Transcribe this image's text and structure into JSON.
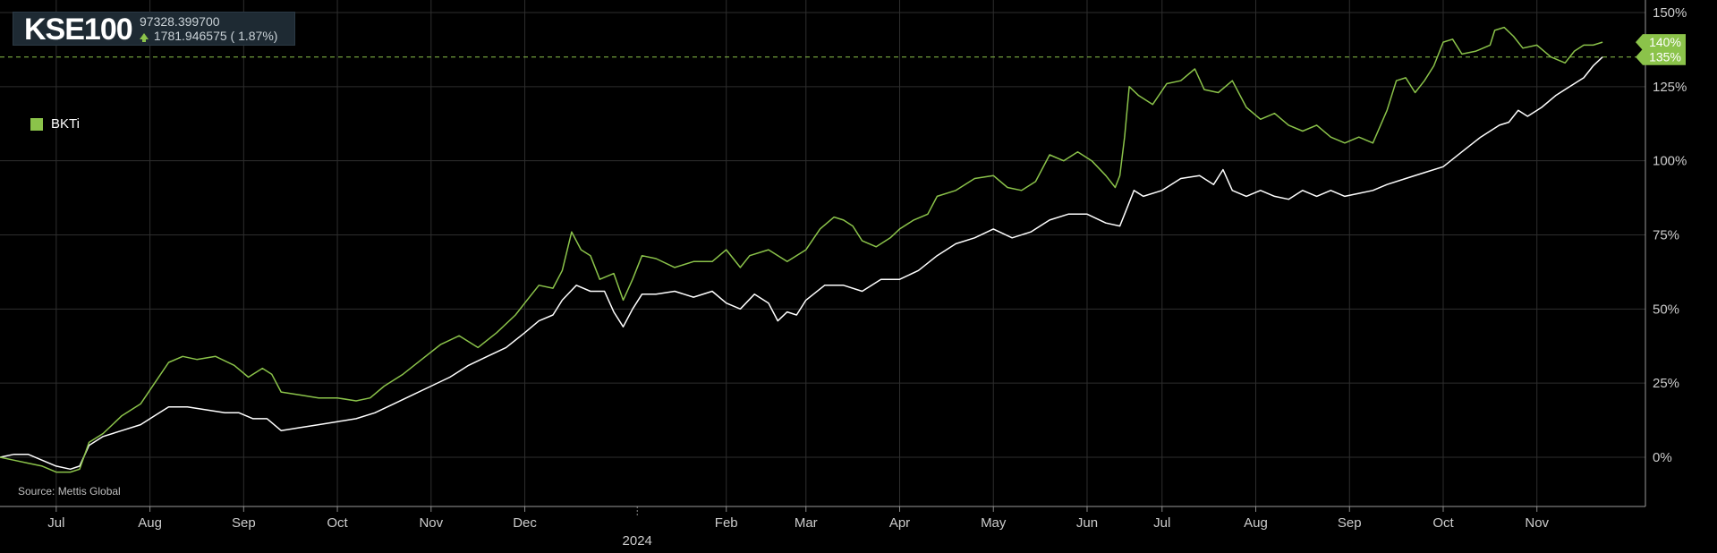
{
  "header": {
    "ticker": "KSE100",
    "price": "97328.399700",
    "change": "1781.946575 ( 1.87%)"
  },
  "legend": {
    "label": "BKTi",
    "color": "#8bc34a"
  },
  "source": "Source: Mettis Global",
  "colors": {
    "background": "#000000",
    "grid": "#2e2e2e",
    "series_bkti": "#8bc34a",
    "series_kse100": "#ffffff",
    "axis_text": "#cccccc"
  },
  "chart_data": {
    "type": "line",
    "title": "",
    "xlabel": "",
    "ylabel": "",
    "ylim": [
      -17,
      150
    ],
    "grid": true,
    "legend_position": "top-left",
    "y_ticks": [
      "0%",
      "25%",
      "50%",
      "75%",
      "100%",
      "125%",
      "150%"
    ],
    "y_tick_values": [
      0,
      25,
      50,
      75,
      100,
      125,
      150
    ],
    "x_ticks": [
      {
        "label": "Jul",
        "t": 0.6
      },
      {
        "label": "Aug",
        "t": 1.6
      },
      {
        "label": "Sep",
        "t": 2.6
      },
      {
        "label": "Oct",
        "t": 3.6
      },
      {
        "label": "Nov",
        "t": 4.6
      },
      {
        "label": "Dec",
        "t": 5.6
      },
      {
        "label": "Feb",
        "t": 7.75
      },
      {
        "label": "Mar",
        "t": 8.6
      },
      {
        "label": "Apr",
        "t": 9.6
      },
      {
        "label": "May",
        "t": 10.6
      },
      {
        "label": "Jun",
        "t": 11.6
      },
      {
        "label": "Jul",
        "t": 12.4
      },
      {
        "label": "Aug",
        "t": 13.4
      },
      {
        "label": "Sep",
        "t": 14.4
      },
      {
        "label": "Oct",
        "t": 15.4
      },
      {
        "label": "Nov",
        "t": 16.4
      }
    ],
    "year_marker": {
      "label": "2024",
      "t": 6.8
    },
    "t_max": 17.3,
    "end_labels": [
      {
        "text": "140%",
        "value": 140,
        "color": "#8bc34a"
      },
      {
        "text": "135%",
        "value": 135,
        "color": "#8bc34a"
      }
    ],
    "reference_line": {
      "value": 135,
      "style": "dashed",
      "color": "#8bc34a"
    },
    "series": [
      {
        "name": "BKTi",
        "color": "#8bc34a",
        "points": [
          [
            0,
            0
          ],
          [
            0.15,
            -1
          ],
          [
            0.3,
            -2
          ],
          [
            0.45,
            -3
          ],
          [
            0.6,
            -5
          ],
          [
            0.75,
            -5
          ],
          [
            0.85,
            -4
          ],
          [
            0.95,
            5
          ],
          [
            1.1,
            8
          ],
          [
            1.3,
            14
          ],
          [
            1.5,
            18
          ],
          [
            1.65,
            25
          ],
          [
            1.8,
            32
          ],
          [
            1.95,
            34
          ],
          [
            2.1,
            33
          ],
          [
            2.3,
            34
          ],
          [
            2.5,
            31
          ],
          [
            2.65,
            27
          ],
          [
            2.8,
            30
          ],
          [
            2.9,
            28
          ],
          [
            3.0,
            22
          ],
          [
            3.2,
            21
          ],
          [
            3.4,
            20
          ],
          [
            3.6,
            20
          ],
          [
            3.8,
            19
          ],
          [
            3.95,
            20
          ],
          [
            4.1,
            24
          ],
          [
            4.3,
            28
          ],
          [
            4.5,
            33
          ],
          [
            4.7,
            38
          ],
          [
            4.9,
            41
          ],
          [
            5.1,
            37
          ],
          [
            5.3,
            42
          ],
          [
            5.5,
            48
          ],
          [
            5.6,
            52
          ],
          [
            5.75,
            58
          ],
          [
            5.9,
            57
          ],
          [
            6.0,
            63
          ],
          [
            6.1,
            76
          ],
          [
            6.2,
            70
          ],
          [
            6.3,
            68
          ],
          [
            6.4,
            60
          ],
          [
            6.55,
            62
          ],
          [
            6.65,
            53
          ],
          [
            6.75,
            60
          ],
          [
            6.85,
            68
          ],
          [
            7.0,
            67
          ],
          [
            7.2,
            64
          ],
          [
            7.4,
            66
          ],
          [
            7.6,
            66
          ],
          [
            7.75,
            70
          ],
          [
            7.9,
            64
          ],
          [
            8.0,
            68
          ],
          [
            8.2,
            70
          ],
          [
            8.4,
            66
          ],
          [
            8.6,
            70
          ],
          [
            8.75,
            77
          ],
          [
            8.9,
            81
          ],
          [
            9.0,
            80
          ],
          [
            9.1,
            78
          ],
          [
            9.2,
            73
          ],
          [
            9.35,
            71
          ],
          [
            9.5,
            74
          ],
          [
            9.6,
            77
          ],
          [
            9.75,
            80
          ],
          [
            9.9,
            82
          ],
          [
            10.0,
            88
          ],
          [
            10.2,
            90
          ],
          [
            10.4,
            94
          ],
          [
            10.6,
            95
          ],
          [
            10.75,
            91
          ],
          [
            10.9,
            90
          ],
          [
            11.05,
            93
          ],
          [
            11.2,
            102
          ],
          [
            11.35,
            100
          ],
          [
            11.5,
            103
          ],
          [
            11.65,
            100
          ],
          [
            11.8,
            95
          ],
          [
            11.9,
            91
          ],
          [
            11.95,
            95
          ],
          [
            12.0,
            108
          ],
          [
            12.05,
            125
          ],
          [
            12.15,
            122
          ],
          [
            12.3,
            119
          ],
          [
            12.45,
            126
          ],
          [
            12.6,
            127
          ],
          [
            12.75,
            131
          ],
          [
            12.85,
            124
          ],
          [
            13.0,
            123
          ],
          [
            13.15,
            127
          ],
          [
            13.3,
            118
          ],
          [
            13.45,
            114
          ],
          [
            13.6,
            116
          ],
          [
            13.75,
            112
          ],
          [
            13.9,
            110
          ],
          [
            14.05,
            112
          ],
          [
            14.2,
            108
          ],
          [
            14.35,
            106
          ],
          [
            14.5,
            108
          ],
          [
            14.65,
            106
          ],
          [
            14.8,
            117
          ],
          [
            14.9,
            127
          ],
          [
            15.0,
            128
          ],
          [
            15.1,
            123
          ],
          [
            15.2,
            127
          ],
          [
            15.3,
            132
          ],
          [
            15.4,
            140
          ],
          [
            15.5,
            141
          ],
          [
            15.6,
            136
          ],
          [
            15.75,
            137
          ],
          [
            15.9,
            139
          ],
          [
            15.95,
            144
          ],
          [
            16.05,
            145
          ],
          [
            16.15,
            142
          ],
          [
            16.25,
            138
          ],
          [
            16.4,
            139
          ],
          [
            16.55,
            135
          ],
          [
            16.7,
            133
          ],
          [
            16.8,
            137
          ],
          [
            16.9,
            139
          ],
          [
            17.0,
            139
          ],
          [
            17.1,
            140
          ]
        ]
      },
      {
        "name": "",
        "color": "#ffffff",
        "points": [
          [
            0,
            0
          ],
          [
            0.15,
            1
          ],
          [
            0.3,
            1
          ],
          [
            0.45,
            -1
          ],
          [
            0.6,
            -3
          ],
          [
            0.75,
            -4
          ],
          [
            0.85,
            -3
          ],
          [
            0.95,
            4
          ],
          [
            1.1,
            7
          ],
          [
            1.3,
            9
          ],
          [
            1.5,
            11
          ],
          [
            1.65,
            14
          ],
          [
            1.8,
            17
          ],
          [
            2.0,
            17
          ],
          [
            2.2,
            16
          ],
          [
            2.4,
            15
          ],
          [
            2.55,
            15
          ],
          [
            2.7,
            13
          ],
          [
            2.85,
            13
          ],
          [
            3.0,
            9
          ],
          [
            3.2,
            10
          ],
          [
            3.4,
            11
          ],
          [
            3.6,
            12
          ],
          [
            3.8,
            13
          ],
          [
            4.0,
            15
          ],
          [
            4.2,
            18
          ],
          [
            4.4,
            21
          ],
          [
            4.6,
            24
          ],
          [
            4.8,
            27
          ],
          [
            5.0,
            31
          ],
          [
            5.2,
            34
          ],
          [
            5.4,
            37
          ],
          [
            5.6,
            42
          ],
          [
            5.75,
            46
          ],
          [
            5.9,
            48
          ],
          [
            6.0,
            53
          ],
          [
            6.15,
            58
          ],
          [
            6.3,
            56
          ],
          [
            6.45,
            56
          ],
          [
            6.55,
            49
          ],
          [
            6.65,
            44
          ],
          [
            6.75,
            50
          ],
          [
            6.85,
            55
          ],
          [
            7.0,
            55
          ],
          [
            7.2,
            56
          ],
          [
            7.4,
            54
          ],
          [
            7.6,
            56
          ],
          [
            7.75,
            52
          ],
          [
            7.9,
            50
          ],
          [
            8.05,
            55
          ],
          [
            8.2,
            52
          ],
          [
            8.3,
            46
          ],
          [
            8.4,
            49
          ],
          [
            8.5,
            48
          ],
          [
            8.6,
            53
          ],
          [
            8.8,
            58
          ],
          [
            9.0,
            58
          ],
          [
            9.2,
            56
          ],
          [
            9.4,
            60
          ],
          [
            9.6,
            60
          ],
          [
            9.8,
            63
          ],
          [
            10.0,
            68
          ],
          [
            10.2,
            72
          ],
          [
            10.4,
            74
          ],
          [
            10.6,
            77
          ],
          [
            10.8,
            74
          ],
          [
            11.0,
            76
          ],
          [
            11.2,
            80
          ],
          [
            11.4,
            82
          ],
          [
            11.6,
            82
          ],
          [
            11.8,
            79
          ],
          [
            11.95,
            78
          ],
          [
            12.0,
            82
          ],
          [
            12.1,
            90
          ],
          [
            12.2,
            88
          ],
          [
            12.4,
            90
          ],
          [
            12.6,
            94
          ],
          [
            12.8,
            95
          ],
          [
            12.95,
            92
          ],
          [
            13.05,
            97
          ],
          [
            13.15,
            90
          ],
          [
            13.3,
            88
          ],
          [
            13.45,
            90
          ],
          [
            13.6,
            88
          ],
          [
            13.75,
            87
          ],
          [
            13.9,
            90
          ],
          [
            14.05,
            88
          ],
          [
            14.2,
            90
          ],
          [
            14.35,
            88
          ],
          [
            14.5,
            89
          ],
          [
            14.65,
            90
          ],
          [
            14.8,
            92
          ],
          [
            15.0,
            94
          ],
          [
            15.2,
            96
          ],
          [
            15.4,
            98
          ],
          [
            15.6,
            103
          ],
          [
            15.8,
            108
          ],
          [
            16.0,
            112
          ],
          [
            16.1,
            113
          ],
          [
            16.2,
            117
          ],
          [
            16.3,
            115
          ],
          [
            16.45,
            118
          ],
          [
            16.6,
            122
          ],
          [
            16.75,
            125
          ],
          [
            16.9,
            128
          ],
          [
            17.0,
            132
          ],
          [
            17.1,
            135
          ]
        ]
      }
    ]
  }
}
